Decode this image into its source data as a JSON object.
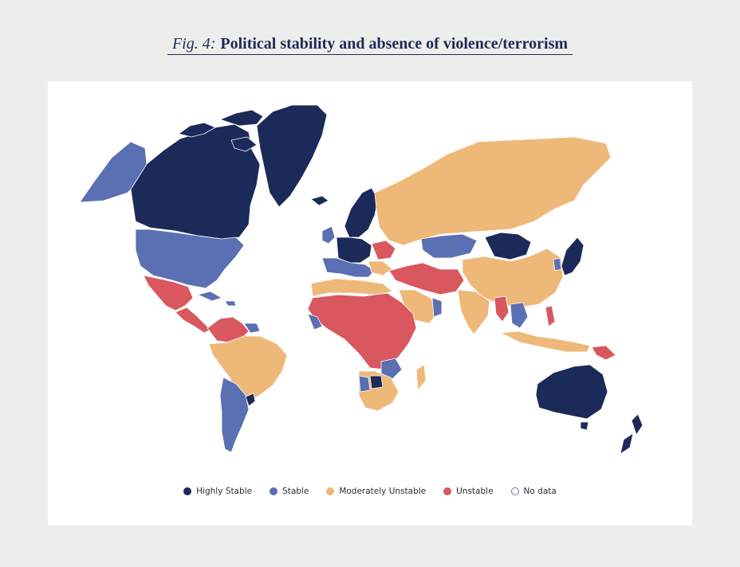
{
  "title": {
    "prefix": "Fig. 4:",
    "text": "Political stability and absence of violence/terrorism"
  },
  "categories": {
    "highly_stable": "#1b2a58",
    "stable": "#5b6fb3",
    "moderately_unstable": "#eeb878",
    "unstable": "#d9575e",
    "no_data": "#ffffff"
  },
  "legend": [
    {
      "label": "Highly Stable",
      "color": "#1b2a58"
    },
    {
      "label": "Stable",
      "color": "#5b6fb3"
    },
    {
      "label": "Moderately Unstable",
      "color": "#eeb878"
    },
    {
      "label": "Unstable",
      "color": "#d9575e"
    },
    {
      "label": "No data",
      "color": "#ffffff"
    }
  ]
}
